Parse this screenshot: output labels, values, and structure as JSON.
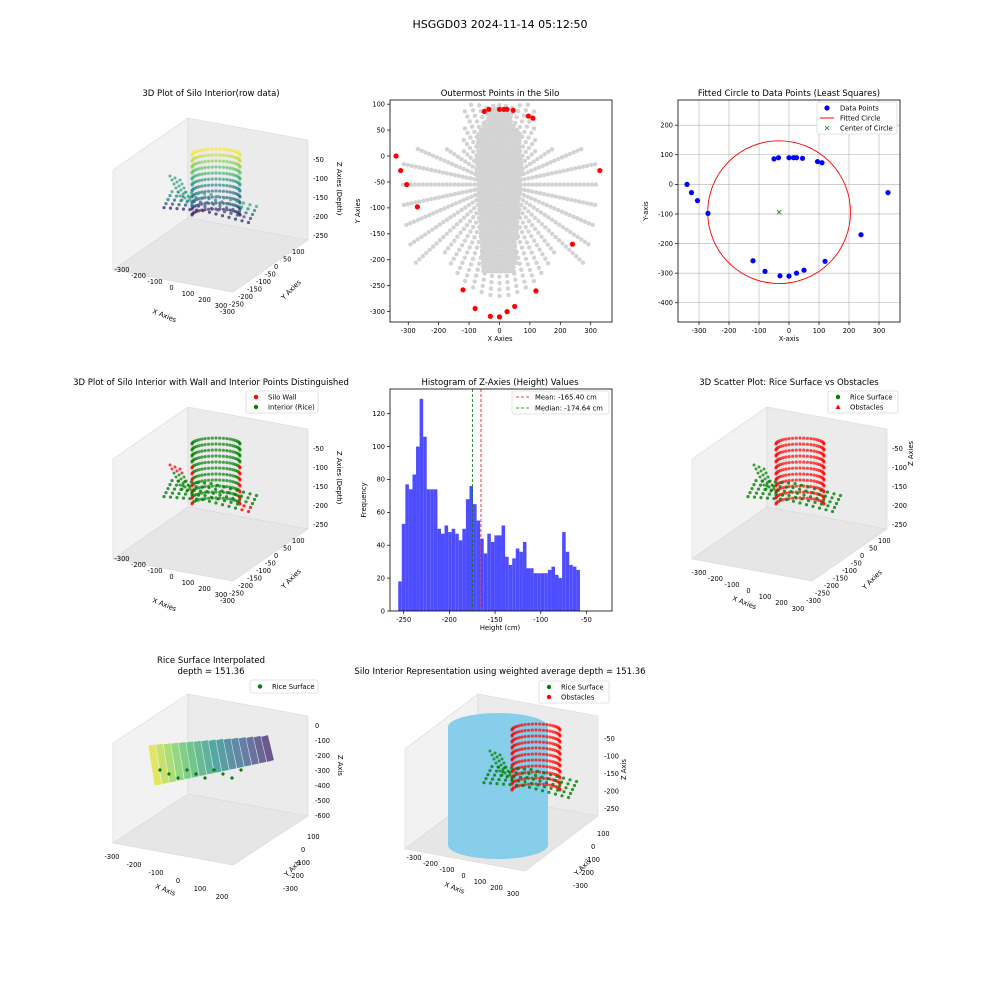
{
  "figure_title": "HSGGD03 2024-11-14 05:12:50",
  "colors": {
    "blue": "#0000ff",
    "red": "#ff0000",
    "green": "#008000",
    "grey": "#d3d3d3",
    "hist": "#4d4dff",
    "skyblue": "#87ceeb"
  },
  "chart_data": [
    {
      "id": "p1",
      "type": "scatter3d",
      "title": "3D Plot of Silo Interior(row data)",
      "xlabel": "X Axies",
      "ylabel": "Y Axies",
      "zlabel": "Z Axies (Depth)",
      "xticks": [
        "-300",
        "-200",
        "-100",
        "0",
        "100",
        "200",
        "300"
      ],
      "yticks": [
        "100",
        "50",
        "0",
        "-50",
        "-100",
        "-150",
        "-200",
        "-250",
        "-300"
      ],
      "zticks": [
        "-50",
        "-100",
        "-150",
        "-200",
        "-250"
      ],
      "colormap": "viridis"
    },
    {
      "id": "p2",
      "type": "scatter",
      "title": "Outermost Points in the Silo",
      "xlabel": "X Axies",
      "ylabel": "Y Axies",
      "xlim": [
        -360,
        370
      ],
      "ylim": [
        -320,
        108
      ],
      "xticks": [
        -300,
        -200,
        -100,
        0,
        100,
        200,
        300
      ],
      "yticks": [
        100,
        50,
        0,
        -50,
        -100,
        -150,
        -200,
        -250,
        -300
      ],
      "xtick_labels": [
        "-300",
        "-200",
        "-100",
        "0",
        "100",
        "200",
        "300"
      ],
      "ytick_labels": [
        "100",
        "50",
        "0",
        "-50",
        "-100",
        "-150",
        "-200",
        "-250",
        "-300"
      ],
      "outer_points": [
        [
          -340,
          0
        ],
        [
          -325,
          -28
        ],
        [
          -305,
          -55
        ],
        [
          -270,
          -98
        ],
        [
          -120,
          -258
        ],
        [
          -80,
          -294
        ],
        [
          -30,
          -309
        ],
        [
          0,
          -310
        ],
        [
          25,
          -300
        ],
        [
          50,
          -290
        ],
        [
          120,
          -260
        ],
        [
          240,
          -170
        ],
        [
          330,
          -28
        ],
        [
          -50,
          86
        ],
        [
          -35,
          90
        ],
        [
          0,
          90
        ],
        [
          15,
          90
        ],
        [
          25,
          90
        ],
        [
          45,
          88
        ],
        [
          95,
          77
        ],
        [
          110,
          73
        ]
      ]
    },
    {
      "id": "p3",
      "type": "scatter",
      "title": "Fitted Circle to Data Points (Least Squares)",
      "xlabel": "X-axis",
      "ylabel": "Y-axis",
      "xlim": [
        -370,
        370
      ],
      "ylim": [
        -465,
        285
      ],
      "xticks": [
        -300,
        -200,
        -100,
        0,
        100,
        200,
        300
      ],
      "yticks": [
        200,
        100,
        0,
        -100,
        -200,
        -300,
        -400
      ],
      "xtick_labels": [
        "-300",
        "-200",
        "-100",
        "0",
        "100",
        "200",
        "300"
      ],
      "ytick_labels": [
        "200",
        "100",
        "0",
        "-100",
        "-200",
        "-300",
        "-400"
      ],
      "grid": true,
      "legend": "top-right",
      "series": [
        {
          "name": "Data Points",
          "points": [
            [
              -340,
              0
            ],
            [
              -325,
              -28
            ],
            [
              -305,
              -55
            ],
            [
              -270,
              -98
            ],
            [
              -120,
              -258
            ],
            [
              -80,
              -294
            ],
            [
              -30,
              -309
            ],
            [
              0,
              -310
            ],
            [
              25,
              -300
            ],
            [
              50,
              -290
            ],
            [
              120,
              -260
            ],
            [
              240,
              -170
            ],
            [
              330,
              -28
            ],
            [
              -50,
              86
            ],
            [
              -35,
              90
            ],
            [
              0,
              90
            ],
            [
              15,
              90
            ],
            [
              25,
              90
            ],
            [
              45,
              88
            ],
            [
              95,
              77
            ],
            [
              110,
              73
            ]
          ]
        },
        {
          "name": "Fitted Circle",
          "center": [
            -33,
            -94
          ],
          "radius": 238
        },
        {
          "name": "Center of Circle",
          "point": [
            -33,
            -94
          ]
        }
      ]
    },
    {
      "id": "p4",
      "type": "scatter3d",
      "title": "3D Plot of Silo Interior with Wall and Interior Points Distinguished",
      "xlabel": "X Axies",
      "ylabel": "Y Axies",
      "zlabel": "Z Axies (Depth)",
      "xticks": [
        "-300",
        "-200",
        "-100",
        "0",
        "100",
        "200",
        "300"
      ],
      "yticks": [
        "100",
        "50",
        "0",
        "-50",
        "-100",
        "-150",
        "-200",
        "-250",
        "-300"
      ],
      "zticks": [
        "-50",
        "-100",
        "-150",
        "-200",
        "-250"
      ],
      "series": [
        {
          "name": "Silo Wall"
        },
        {
          "name": "Interior (Rice)"
        }
      ]
    },
    {
      "id": "p5",
      "type": "bar",
      "title": "Histogram of Z-Axies (Height) Values",
      "xlabel": "Height (cm)",
      "ylabel": "Frequency",
      "xlim": [
        -265,
        -22
      ],
      "ylim": [
        0,
        135
      ],
      "xticks": [
        -250,
        -200,
        -150,
        -100,
        -50
      ],
      "yticks": [
        0,
        20,
        40,
        60,
        80,
        100,
        120
      ],
      "xtick_labels": [
        "-250",
        "-200",
        "-150",
        "-100",
        "-50"
      ],
      "ytick_labels": [
        "0",
        "20",
        "40",
        "60",
        "80",
        "100",
        "120"
      ],
      "bin_start": -256,
      "bin_width": 3.9,
      "values": [
        18,
        53,
        77,
        74,
        83,
        100,
        129,
        106,
        74,
        74,
        74,
        50,
        47,
        52,
        48,
        50,
        47,
        43,
        50,
        68,
        76,
        65,
        55,
        44,
        35,
        47,
        42,
        46,
        46,
        52,
        33,
        28,
        32,
        38,
        36,
        42,
        26,
        26,
        23,
        23,
        23,
        23,
        25,
        27,
        22,
        20,
        48,
        36,
        28,
        27,
        25
      ],
      "mean": -165.4,
      "median": -174.64,
      "legend": [
        "Mean: -165.40 cm",
        "Median: -174.64 cm"
      ]
    },
    {
      "id": "p6",
      "type": "scatter3d",
      "title": "3D Scatter Plot: Rice Surface vs Obstacles",
      "xlabel": "X Axies",
      "ylabel": "Y Axies",
      "zlabel": "Z Axies",
      "xticks": [
        "-300",
        "-200",
        "-100",
        "0",
        "100",
        "200",
        "300"
      ],
      "yticks": [
        "100",
        "50",
        "0",
        "-50",
        "-100",
        "-150",
        "-200",
        "-250",
        "-300"
      ],
      "zticks": [
        "-50",
        "-100",
        "-150",
        "-200",
        "-250"
      ],
      "series": [
        {
          "name": "Rice Surface"
        },
        {
          "name": "Obstacles"
        }
      ]
    },
    {
      "id": "p7",
      "type": "surface3d",
      "title": "Rice Surface Interpolated",
      "subtitle": "depth = 151.36",
      "xlabel": "X Axis",
      "ylabel": "Y Axis",
      "zlabel": "Z Axis",
      "xticks": [
        "-300",
        "-200",
        "-100",
        "0",
        "100",
        "200"
      ],
      "yticks": [
        "100",
        "0",
        "-100",
        "-200",
        "-300"
      ],
      "zticks": [
        "0",
        "-100",
        "-200",
        "-300",
        "-400",
        "-500",
        "-600"
      ],
      "series": [
        {
          "name": "Rice Surface"
        }
      ]
    },
    {
      "id": "p8",
      "type": "scatter3d",
      "title": "Silo Interior Representation using weighted average depth = 151.36",
      "xlabel": "X Axis",
      "ylabel": "Y Axis",
      "zlabel": "Z Axis",
      "xticks": [
        "-300",
        "-200",
        "-100",
        "0",
        "100",
        "200",
        "300"
      ],
      "yticks": [
        "100",
        "0",
        "-100",
        "-200",
        "-300"
      ],
      "zticks": [
        "-50",
        "-100",
        "-150",
        "-200",
        "-250"
      ],
      "series": [
        {
          "name": "Rice Surface"
        },
        {
          "name": "Obstacles"
        }
      ]
    }
  ]
}
